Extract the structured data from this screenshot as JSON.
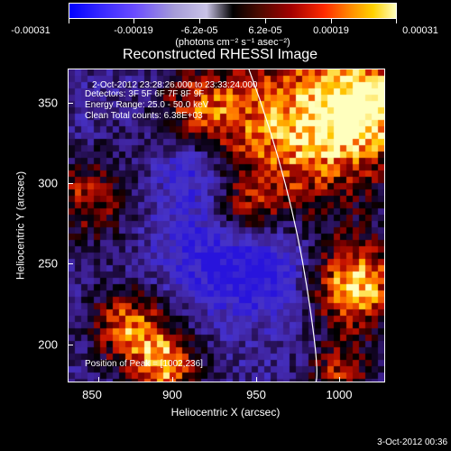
{
  "colorbar": {
    "ticks": [
      "-0.00031",
      "-0.00019",
      "-6.2e-05",
      "6.2e-05",
      "0.00019",
      "0.00031"
    ],
    "units": "(photons cm⁻² s⁻¹ asec⁻²)",
    "colors": [
      "#0000ff",
      "#a59bd8",
      "#000000",
      "#a40000",
      "#ff8a00",
      "#ffffc0"
    ]
  },
  "plot": {
    "title": "Reconstructed RHESSI Image",
    "annotation": {
      "time": "2-Oct-2012 23:28:26.000 to 23:33:24.000",
      "detectors": "Detectors: 3F 5F 6F 7F 8F 9F",
      "energy": "Energy Range: 25.0 - 50.0 keV",
      "clean": "Clean     Total counts: 6.38E+03",
      "peak": "Position of Peak = [1002,236]"
    },
    "x_axis": {
      "label": "Heliocentric X (arcsec)",
      "ticks": [
        "850",
        "900",
        "950",
        "1000"
      ]
    },
    "y_axis": {
      "label": "Heliocentric Y (arcsec)",
      "ticks": [
        "350",
        "300",
        "250",
        "200"
      ]
    }
  },
  "timestamp": "3-Oct-2012 00:36"
}
